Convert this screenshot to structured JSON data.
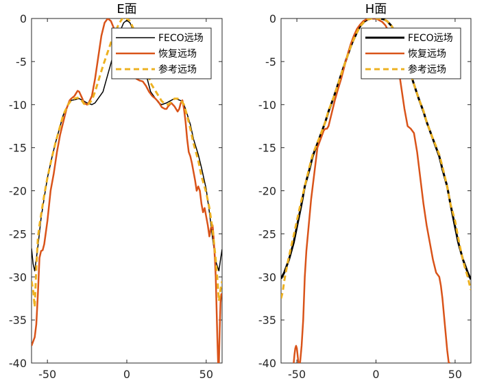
{
  "chart_data": [
    {
      "type": "line",
      "title": "E面",
      "xlabel": "",
      "ylabel": "",
      "xlim": [
        -60,
        60
      ],
      "ylim": [
        -40,
        0
      ],
      "xticks": [
        -50,
        0,
        50
      ],
      "yticks": [
        0,
        -5,
        -10,
        -15,
        -20,
        -25,
        -30,
        -35,
        -40
      ],
      "legend_position": "top-right",
      "series": [
        {
          "name": "FECO远场",
          "color": "#000000",
          "width": 1.5,
          "dash": "",
          "x": [
            -60,
            -59,
            -58,
            -56,
            -54,
            -52,
            -50,
            -47,
            -45,
            -42,
            -40,
            -37,
            -35,
            -32,
            -30,
            -27,
            -25,
            -22,
            -20,
            -15,
            -10,
            -5,
            -2,
            0,
            2,
            5,
            10,
            15,
            20,
            22,
            25,
            27,
            30,
            32,
            35,
            37,
            40,
            42,
            45,
            47,
            50,
            52,
            54,
            56,
            58,
            59,
            60
          ],
          "y": [
            -26.7,
            -28.5,
            -29.3,
            -26.5,
            -23.2,
            -20.8,
            -18.5,
            -16.0,
            -14.5,
            -12.5,
            -11.2,
            -10.0,
            -9.5,
            -9.4,
            -9.3,
            -9.6,
            -9.8,
            -10.0,
            -9.8,
            -8.5,
            -5.2,
            -1.8,
            -0.5,
            -0.2,
            -0.5,
            -1.8,
            -5.0,
            -8.5,
            -9.8,
            -10.0,
            -9.8,
            -9.6,
            -9.3,
            -9.4,
            -9.6,
            -10.5,
            -12.3,
            -14.0,
            -15.8,
            -17.3,
            -19.8,
            -22.5,
            -25.5,
            -28.2,
            -29.3,
            -28.0,
            -26.8
          ]
        },
        {
          "name": "恢复远场",
          "color": "#d95319",
          "width": 2.5,
          "dash": "",
          "x": [
            -60,
            -58,
            -57,
            -56,
            -55,
            -54,
            -53,
            -52,
            -50,
            -48,
            -46,
            -44,
            -42,
            -40,
            -38,
            -36,
            -35,
            -33,
            -31,
            -30,
            -28,
            -27,
            -25,
            -24,
            -22,
            -20,
            -18,
            -16,
            -14,
            -12,
            -10,
            -8,
            -6,
            -4,
            -2,
            0,
            2,
            4,
            6,
            8,
            10,
            12,
            14,
            16,
            18,
            20,
            22,
            24,
            25,
            26,
            28,
            30,
            31,
            32,
            33,
            34,
            35,
            36,
            37,
            38,
            39,
            40,
            41,
            42,
            43,
            44,
            45,
            46,
            47,
            48,
            49,
            50,
            51,
            52,
            53,
            54,
            54.5,
            55,
            55.5,
            56,
            56.5,
            57,
            57.5,
            58,
            58.5,
            59,
            59.5,
            60
          ],
          "y": [
            -38.0,
            -37.0,
            -35.5,
            -32.0,
            -27.8,
            -27.0,
            -26.9,
            -26.2,
            -23.5,
            -20.0,
            -18.0,
            -15.5,
            -13.5,
            -12.0,
            -10.5,
            -9.5,
            -9.3,
            -9.0,
            -8.4,
            -8.5,
            -9.3,
            -9.8,
            -10.0,
            -9.8,
            -9.0,
            -7.0,
            -4.5,
            -2.0,
            -0.5,
            0.0,
            -0.3,
            -1.2,
            -3.0,
            -4.5,
            -5.5,
            -6.0,
            -5.7,
            -6.5,
            -7.0,
            -7.2,
            -7.3,
            -7.8,
            -8.5,
            -9.0,
            -9.3,
            -9.7,
            -10.3,
            -10.5,
            -10.5,
            -10.2,
            -9.8,
            -10.2,
            -10.5,
            -10.8,
            -10.5,
            -9.8,
            -9.5,
            -10.5,
            -12.0,
            -14.0,
            -15.5,
            -16.0,
            -16.8,
            -17.8,
            -18.8,
            -20.0,
            -19.5,
            -20.0,
            -21.5,
            -22.5,
            -22.0,
            -23.0,
            -24.0,
            -25.3,
            -24.3,
            -24.0,
            -25.0,
            -26.5,
            -28.0,
            -30.0,
            -33.5,
            -37.0,
            -40.0,
            -40.0,
            -36.0,
            -33.0,
            -32.0,
            -32.0
          ]
        },
        {
          "name": "参考远场",
          "color": "#edb120",
          "width": 3,
          "dash": "8,5",
          "x": [
            -60,
            -59,
            -58,
            -57,
            -56,
            -55,
            -54,
            -52,
            -50,
            -47,
            -45,
            -42,
            -40,
            -37,
            -35,
            -33,
            -31,
            -30,
            -28,
            -27,
            -25,
            -24,
            -22,
            -20,
            -15,
            -10,
            -5,
            -2,
            0,
            2,
            5,
            10,
            15,
            20,
            22,
            24,
            26,
            28,
            30,
            32,
            34,
            36,
            38,
            40,
            42,
            45,
            47,
            50,
            52,
            54,
            55,
            56,
            57,
            58,
            59,
            60
          ],
          "y": [
            -30.5,
            -31.5,
            -33.5,
            -29.0,
            -25.5,
            -24.0,
            -22.8,
            -20.5,
            -18.5,
            -16.0,
            -14.5,
            -12.5,
            -11.2,
            -10.0,
            -9.5,
            -9.3,
            -9.2,
            -9.4,
            -9.6,
            -9.9,
            -10.1,
            -9.9,
            -9.5,
            -8.5,
            -5.5,
            -2.8,
            -0.6,
            0.2,
            0.0,
            -0.3,
            -1.5,
            -4.5,
            -7.5,
            -9.0,
            -9.6,
            -9.9,
            -10.0,
            -9.7,
            -9.3,
            -9.3,
            -9.5,
            -10.0,
            -11.3,
            -12.8,
            -14.5,
            -16.5,
            -18.3,
            -20.2,
            -22.0,
            -24.5,
            -26.2,
            -28.0,
            -30.2,
            -32.8,
            -31.5,
            -30.5
          ]
        }
      ]
    },
    {
      "type": "line",
      "title": "H面",
      "xlabel": "",
      "ylabel": "",
      "xlim": [
        -60,
        60
      ],
      "ylim": [
        -40,
        0
      ],
      "xticks": [
        -50,
        0,
        50
      ],
      "yticks": [
        0,
        -5,
        -10,
        -15,
        -20,
        -25,
        -30,
        -35,
        -40
      ],
      "legend_position": "top-right",
      "series": [
        {
          "name": "FECO远场",
          "color": "#000000",
          "width": 3,
          "dash": "",
          "x": [
            -60,
            -58,
            -55,
            -52,
            -50,
            -47,
            -45,
            -42,
            -40,
            -37,
            -35,
            -32,
            -30,
            -27,
            -25,
            -22,
            -20,
            -17,
            -15,
            -12,
            -10,
            -7,
            -5,
            -3,
            0,
            3,
            5,
            7,
            10,
            12,
            15,
            17,
            20,
            22,
            25,
            27,
            30,
            32,
            35,
            37,
            40,
            42,
            45,
            47,
            50,
            52,
            55,
            58,
            60
          ],
          "y": [
            -30.2,
            -29.5,
            -28.0,
            -26.0,
            -24.2,
            -21.5,
            -19.5,
            -17.5,
            -16.0,
            -14.5,
            -13.5,
            -12.0,
            -10.8,
            -9.3,
            -8.2,
            -6.5,
            -5.4,
            -3.8,
            -2.8,
            -1.6,
            -0.9,
            -0.3,
            -0.1,
            0.0,
            0.0,
            0.0,
            -0.1,
            -0.3,
            -0.9,
            -1.6,
            -2.8,
            -3.8,
            -5.4,
            -6.5,
            -8.2,
            -9.3,
            -10.8,
            -12.0,
            -13.5,
            -14.5,
            -16.0,
            -17.5,
            -19.5,
            -21.5,
            -24.2,
            -26.0,
            -28.0,
            -29.5,
            -30.3
          ]
        },
        {
          "name": "恢复远场",
          "color": "#d95319",
          "width": 2.5,
          "dash": "",
          "x": [
            -52,
            -51.5,
            -51,
            -50.5,
            -50,
            -49,
            -48,
            -47,
            -46,
            -45,
            -44,
            -43,
            -42,
            -41,
            -40,
            -39,
            -38,
            -37,
            -36,
            -35,
            -34,
            -33,
            -32,
            -31,
            -30,
            -28,
            -26,
            -24,
            -22,
            -20,
            -18,
            -16,
            -14,
            -12,
            -10,
            -8,
            -6,
            -4,
            -2,
            0,
            2,
            4,
            6,
            8,
            10,
            12,
            14,
            16,
            18,
            20,
            22,
            24,
            26,
            28,
            30,
            32,
            34,
            36,
            38,
            40,
            41,
            42,
            43,
            44,
            45,
            46,
            47
          ],
          "y": [
            -40.0,
            -39.0,
            -38.3,
            -38.0,
            -38.3,
            -40.0,
            -40.0,
            -38.0,
            -35.0,
            -30.0,
            -27.0,
            -25.0,
            -23.0,
            -21.0,
            -19.5,
            -18.0,
            -16.5,
            -15.0,
            -14.5,
            -14.0,
            -13.5,
            -13.0,
            -12.8,
            -12.8,
            -12.5,
            -11.0,
            -9.5,
            -8.2,
            -7.0,
            -5.6,
            -4.2,
            -3.0,
            -2.0,
            -1.2,
            -0.7,
            -0.3,
            -0.1,
            0.0,
            0.0,
            0.0,
            -0.2,
            -0.4,
            -0.8,
            -1.5,
            -2.5,
            -3.8,
            -5.5,
            -8.0,
            -10.5,
            -12.5,
            -12.8,
            -13.3,
            -15.5,
            -18.5,
            -21.5,
            -24.0,
            -26.0,
            -28.0,
            -29.5,
            -30.0,
            -31.0,
            -32.5,
            -34.5,
            -36.5,
            -38.5,
            -40.0,
            -40.0
          ]
        },
        {
          "name": "参考远场",
          "color": "#edb120",
          "width": 3,
          "dash": "8,5",
          "x": [
            -60,
            -59,
            -58,
            -56,
            -54,
            -52,
            -50,
            -48,
            -45,
            -42,
            -40,
            -37,
            -35,
            -32,
            -30,
            -27,
            -25,
            -22,
            -20,
            -17,
            -15,
            -12,
            -10,
            -7,
            -5,
            -3,
            0,
            3,
            5,
            7,
            10,
            12,
            15,
            17,
            20,
            22,
            25,
            27,
            30,
            32,
            35,
            37,
            40,
            42,
            45,
            47,
            50,
            52,
            54,
            56,
            58,
            59,
            60
          ],
          "y": [
            -32.5,
            -31.8,
            -30.5,
            -28.5,
            -26.8,
            -25.2,
            -23.5,
            -21.8,
            -19.5,
            -17.2,
            -15.8,
            -14.4,
            -13.5,
            -12.0,
            -10.7,
            -9.3,
            -8.2,
            -6.5,
            -5.4,
            -3.8,
            -2.8,
            -1.6,
            -0.9,
            -0.3,
            -0.1,
            0.0,
            0.0,
            0.0,
            -0.1,
            -0.3,
            -0.9,
            -1.6,
            -2.8,
            -3.8,
            -5.4,
            -6.5,
            -8.2,
            -9.3,
            -10.7,
            -12.0,
            -13.5,
            -14.4,
            -15.8,
            -17.2,
            -19.5,
            -21.5,
            -23.5,
            -25.5,
            -27.3,
            -28.8,
            -30.0,
            -30.8,
            -31.5
          ]
        }
      ]
    }
  ]
}
